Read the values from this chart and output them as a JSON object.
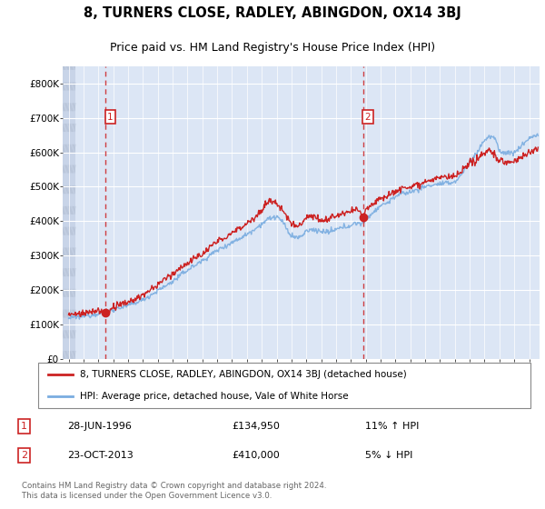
{
  "title": "8, TURNERS CLOSE, RADLEY, ABINGDON, OX14 3BJ",
  "subtitle": "Price paid vs. HM Land Registry's House Price Index (HPI)",
  "ylim": [
    0,
    850000
  ],
  "yticks": [
    0,
    100000,
    200000,
    300000,
    400000,
    500000,
    600000,
    700000,
    800000
  ],
  "ytick_labels": [
    "£0",
    "£100K",
    "£200K",
    "£300K",
    "£400K",
    "£500K",
    "£600K",
    "£700K",
    "£800K"
  ],
  "hpi_color": "#7aade0",
  "price_color": "#cc2222",
  "annotation_color": "#cc2222",
  "background_plot": "#dce6f5",
  "grid_color": "#ffffff",
  "transaction1_x": 1996.49,
  "transaction1_y": 134950,
  "transaction2_x": 2013.81,
  "transaction2_y": 410000,
  "legend_label1": "8, TURNERS CLOSE, RADLEY, ABINGDON, OX14 3BJ (detached house)",
  "legend_label2": "HPI: Average price, detached house, Vale of White Horse",
  "footer": "Contains HM Land Registry data © Crown copyright and database right 2024.\nThis data is licensed under the Open Government Licence v3.0.",
  "xmin": 1993.6,
  "xmax": 2025.7
}
